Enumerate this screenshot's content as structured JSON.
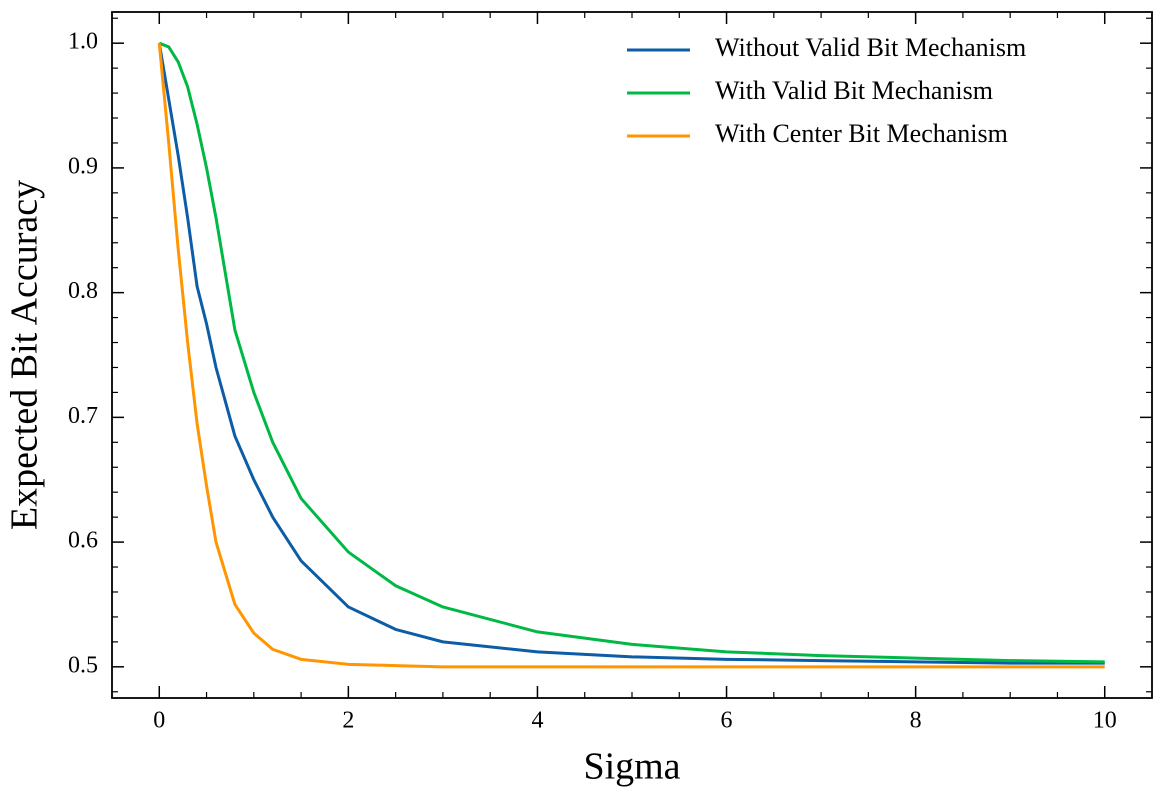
{
  "chart_data": {
    "type": "line",
    "x_label": "Sigma",
    "y_label": "Expected Bit Accuracy",
    "x": [
      0,
      0.1,
      0.2,
      0.3,
      0.4,
      0.5,
      0.6,
      0.8,
      1.0,
      1.2,
      1.5,
      2,
      2.5,
      3,
      4,
      5,
      6,
      7,
      8,
      9,
      10
    ],
    "series": [
      {
        "name": "Without Valid Bit Mechanism",
        "color": "#0C5DA5",
        "values": [
          1.0,
          0.955,
          0.91,
          0.86,
          0.805,
          0.775,
          0.74,
          0.685,
          0.65,
          0.62,
          0.585,
          0.548,
          0.53,
          0.52,
          0.512,
          0.508,
          0.506,
          0.505,
          0.504,
          0.503,
          0.503
        ]
      },
      {
        "name": "With Valid Bit Mechanism",
        "color": "#00B945",
        "values": [
          1.0,
          0.997,
          0.985,
          0.965,
          0.935,
          0.9,
          0.86,
          0.77,
          0.72,
          0.68,
          0.635,
          0.592,
          0.565,
          0.548,
          0.528,
          0.518,
          0.512,
          0.509,
          0.507,
          0.505,
          0.504
        ]
      },
      {
        "name": "With Center Bit Mechanism",
        "color": "#FF9500",
        "values": [
          1.0,
          0.92,
          0.835,
          0.76,
          0.695,
          0.645,
          0.6,
          0.55,
          0.527,
          0.514,
          0.506,
          0.502,
          0.501,
          0.5,
          0.5,
          0.5,
          0.5,
          0.5,
          0.5,
          0.5,
          0.5
        ]
      }
    ],
    "xlim": [
      -0.5,
      10.5
    ],
    "ylim": [
      0.475,
      1.025
    ],
    "xticks": [
      0,
      2,
      4,
      6,
      8,
      10
    ],
    "yticks": [
      0.5,
      0.6,
      0.7,
      0.8,
      0.9,
      {
        "value": 1.0,
        "label": "1.0"
      }
    ],
    "xticks_minor": [
      -0.5,
      0.5,
      1,
      1.5,
      2.5,
      3,
      3.5,
      4.5,
      5,
      5.5,
      6.5,
      7,
      7.5,
      8.5,
      9,
      9.5,
      10.5
    ],
    "yticks_minor": [
      0.48,
      0.52,
      0.54,
      0.56,
      0.58,
      0.62,
      0.64,
      0.66,
      0.68,
      0.72,
      0.74,
      0.76,
      0.78,
      0.82,
      0.84,
      0.86,
      0.88,
      0.92,
      0.94,
      0.96,
      0.98,
      1.02
    ],
    "legend": "upper right",
    "grid": false
  }
}
